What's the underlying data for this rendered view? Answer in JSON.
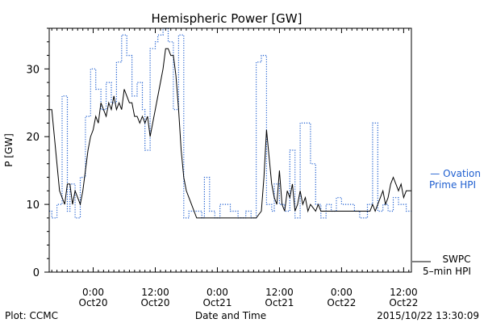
{
  "chart_data": {
    "type": "line",
    "title": "Hemispheric Power [GW]",
    "xlabel": "Date and Time",
    "ylabel": "P [GW]",
    "xlim": [
      "2015-10-19 15:30",
      "2015-10-22 13:30"
    ],
    "ylim": [
      0,
      36
    ],
    "y_ticks": [
      0,
      10,
      20,
      30
    ],
    "x_ticks": [
      {
        "time": "2015-10-20 00:00",
        "line1": "0:00",
        "line2": "Oct20"
      },
      {
        "time": "2015-10-20 12:00",
        "line1": "12:00",
        "line2": "Oct20"
      },
      {
        "time": "2015-10-21 00:00",
        "line1": "0:00",
        "line2": "Oct21"
      },
      {
        "time": "2015-10-21 12:00",
        "line1": "12:00",
        "line2": "Oct21"
      },
      {
        "time": "2015-10-22 00:00",
        "line1": "0:00",
        "line2": "Oct22"
      },
      {
        "time": "2015-10-22 12:00",
        "line1": "12:00",
        "line2": "Oct22"
      }
    ],
    "series": [
      {
        "name": "Ovation Prime HPI",
        "style": "dotted-step",
        "color": "#1f5fd0",
        "points": [
          [
            "2015-10-19 15:30",
            9
          ],
          [
            "2015-10-19 16:00",
            8
          ],
          [
            "2015-10-19 17:00",
            10
          ],
          [
            "2015-10-19 18:00",
            26
          ],
          [
            "2015-10-19 19:00",
            9
          ],
          [
            "2015-10-19 19:30",
            13
          ],
          [
            "2015-10-19 20:30",
            8
          ],
          [
            "2015-10-19 21:30",
            14
          ],
          [
            "2015-10-19 22:30",
            23
          ],
          [
            "2015-10-19 23:30",
            30
          ],
          [
            "2015-10-20 00:30",
            27
          ],
          [
            "2015-10-20 01:30",
            24
          ],
          [
            "2015-10-20 02:30",
            28
          ],
          [
            "2015-10-20 03:30",
            25
          ],
          [
            "2015-10-20 04:30",
            31
          ],
          [
            "2015-10-20 05:30",
            35
          ],
          [
            "2015-10-20 06:30",
            32
          ],
          [
            "2015-10-20 07:30",
            26
          ],
          [
            "2015-10-20 08:30",
            28
          ],
          [
            "2015-10-20 09:30",
            24
          ],
          [
            "2015-10-20 10:00",
            18
          ],
          [
            "2015-10-20 11:00",
            33
          ],
          [
            "2015-10-20 12:00",
            34
          ],
          [
            "2015-10-20 12:30",
            35
          ],
          [
            "2015-10-20 13:30",
            36
          ],
          [
            "2015-10-20 14:30",
            34
          ],
          [
            "2015-10-20 15:30",
            24
          ],
          [
            "2015-10-20 16:30",
            35
          ],
          [
            "2015-10-20 17:30",
            8
          ],
          [
            "2015-10-20 18:30",
            9
          ],
          [
            "2015-10-20 21:00",
            8
          ],
          [
            "2015-10-20 21:30",
            14
          ],
          [
            "2015-10-20 22:30",
            9
          ],
          [
            "2015-10-20 23:30",
            8
          ],
          [
            "2015-10-21 00:30",
            10
          ],
          [
            "2015-10-21 02:30",
            9
          ],
          [
            "2015-10-21 04:00",
            8
          ],
          [
            "2015-10-21 05:30",
            9
          ],
          [
            "2015-10-21 06:30",
            8
          ],
          [
            "2015-10-21 07:30",
            31
          ],
          [
            "2015-10-21 08:30",
            32
          ],
          [
            "2015-10-21 09:30",
            10
          ],
          [
            "2015-10-21 10:30",
            9
          ],
          [
            "2015-10-21 11:00",
            13
          ],
          [
            "2015-10-21 12:00",
            10
          ],
          [
            "2015-10-21 13:00",
            9
          ],
          [
            "2015-10-21 14:00",
            18
          ],
          [
            "2015-10-21 15:00",
            8
          ],
          [
            "2015-10-21 16:00",
            22
          ],
          [
            "2015-10-21 18:00",
            16
          ],
          [
            "2015-10-21 19:00",
            10
          ],
          [
            "2015-10-21 20:00",
            8
          ],
          [
            "2015-10-21 21:00",
            10
          ],
          [
            "2015-10-21 22:00",
            9
          ],
          [
            "2015-10-21 23:00",
            11
          ],
          [
            "2015-10-22 00:00",
            10
          ],
          [
            "2015-10-22 02:30",
            9
          ],
          [
            "2015-10-22 03:30",
            8
          ],
          [
            "2015-10-22 05:00",
            10
          ],
          [
            "2015-10-22 06:00",
            22
          ],
          [
            "2015-10-22 07:00",
            9
          ],
          [
            "2015-10-22 08:00",
            10
          ],
          [
            "2015-10-22 09:00",
            9
          ],
          [
            "2015-10-22 10:00",
            11
          ],
          [
            "2015-10-22 11:00",
            10
          ],
          [
            "2015-10-22 12:30",
            9
          ],
          [
            "2015-10-22 13:30",
            9
          ]
        ]
      },
      {
        "name": "SWPC 5-min HPI",
        "style": "solid",
        "color": "#000000",
        "points": [
          [
            "2015-10-19 15:30",
            24
          ],
          [
            "2015-10-19 16:00",
            24
          ],
          [
            "2015-10-19 16:30",
            20
          ],
          [
            "2015-10-19 17:00",
            16
          ],
          [
            "2015-10-19 17:30",
            12
          ],
          [
            "2015-10-19 18:00",
            11
          ],
          [
            "2015-10-19 18:30",
            10
          ],
          [
            "2015-10-19 19:00",
            13
          ],
          [
            "2015-10-19 19:30",
            13
          ],
          [
            "2015-10-19 20:00",
            10
          ],
          [
            "2015-10-19 20:30",
            12
          ],
          [
            "2015-10-19 21:00",
            11
          ],
          [
            "2015-10-19 21:30",
            10
          ],
          [
            "2015-10-19 22:00",
            12
          ],
          [
            "2015-10-19 22:30",
            15
          ],
          [
            "2015-10-19 23:00",
            18
          ],
          [
            "2015-10-19 23:30",
            20
          ],
          [
            "2015-10-20 00:00",
            21
          ],
          [
            "2015-10-20 00:30",
            23
          ],
          [
            "2015-10-20 01:00",
            22
          ],
          [
            "2015-10-20 01:30",
            25
          ],
          [
            "2015-10-20 02:00",
            24
          ],
          [
            "2015-10-20 02:30",
            23
          ],
          [
            "2015-10-20 03:00",
            25
          ],
          [
            "2015-10-20 03:30",
            24
          ],
          [
            "2015-10-20 04:00",
            26
          ],
          [
            "2015-10-20 04:30",
            24
          ],
          [
            "2015-10-20 05:00",
            25
          ],
          [
            "2015-10-20 05:30",
            24
          ],
          [
            "2015-10-20 06:00",
            27
          ],
          [
            "2015-10-20 06:30",
            26
          ],
          [
            "2015-10-20 07:00",
            25
          ],
          [
            "2015-10-20 07:30",
            25
          ],
          [
            "2015-10-20 08:00",
            23
          ],
          [
            "2015-10-20 08:30",
            23
          ],
          [
            "2015-10-20 09:00",
            22
          ],
          [
            "2015-10-20 09:30",
            23
          ],
          [
            "2015-10-20 10:00",
            22
          ],
          [
            "2015-10-20 10:30",
            23
          ],
          [
            "2015-10-20 11:00",
            20
          ],
          [
            "2015-10-20 11:30",
            22
          ],
          [
            "2015-10-20 12:00",
            24
          ],
          [
            "2015-10-20 12:30",
            26
          ],
          [
            "2015-10-20 13:00",
            28
          ],
          [
            "2015-10-20 13:30",
            30
          ],
          [
            "2015-10-20 14:00",
            33
          ],
          [
            "2015-10-20 14:30",
            33
          ],
          [
            "2015-10-20 15:00",
            32
          ],
          [
            "2015-10-20 15:30",
            32
          ],
          [
            "2015-10-20 16:00",
            29
          ],
          [
            "2015-10-20 16:30",
            24
          ],
          [
            "2015-10-20 17:00",
            18
          ],
          [
            "2015-10-20 17:30",
            14
          ],
          [
            "2015-10-20 18:00",
            12
          ],
          [
            "2015-10-20 18:30",
            11
          ],
          [
            "2015-10-20 19:00",
            10
          ],
          [
            "2015-10-20 19:30",
            9
          ],
          [
            "2015-10-20 20:00",
            8
          ],
          [
            "2015-10-20 20:30",
            8
          ],
          [
            "2015-10-21 06:30",
            8
          ],
          [
            "2015-10-21 07:30",
            8
          ],
          [
            "2015-10-21 08:30",
            9
          ],
          [
            "2015-10-21 09:00",
            14
          ],
          [
            "2015-10-21 09:30",
            21
          ],
          [
            "2015-10-21 10:00",
            17
          ],
          [
            "2015-10-21 10:30",
            13
          ],
          [
            "2015-10-21 11:00",
            11
          ],
          [
            "2015-10-21 11:30",
            10
          ],
          [
            "2015-10-21 12:00",
            15
          ],
          [
            "2015-10-21 12:30",
            10
          ],
          [
            "2015-10-21 13:00",
            9
          ],
          [
            "2015-10-21 13:30",
            12
          ],
          [
            "2015-10-21 14:00",
            11
          ],
          [
            "2015-10-21 14:30",
            13
          ],
          [
            "2015-10-21 15:00",
            9
          ],
          [
            "2015-10-21 15:30",
            10
          ],
          [
            "2015-10-21 16:00",
            12
          ],
          [
            "2015-10-21 16:30",
            10
          ],
          [
            "2015-10-21 17:00",
            11
          ],
          [
            "2015-10-21 17:30",
            9
          ],
          [
            "2015-10-21 18:00",
            10
          ],
          [
            "2015-10-21 19:00",
            9
          ],
          [
            "2015-10-21 19:30",
            10
          ],
          [
            "2015-10-21 20:00",
            9
          ],
          [
            "2015-10-21 20:30",
            9
          ],
          [
            "2015-10-22 05:00",
            9
          ],
          [
            "2015-10-22 05:30",
            9
          ],
          [
            "2015-10-22 06:00",
            10
          ],
          [
            "2015-10-22 06:30",
            9
          ],
          [
            "2015-10-22 07:00",
            10
          ],
          [
            "2015-10-22 07:30",
            11
          ],
          [
            "2015-10-22 08:00",
            12
          ],
          [
            "2015-10-22 08:30",
            10
          ],
          [
            "2015-10-22 09:00",
            11
          ],
          [
            "2015-10-22 09:30",
            13
          ],
          [
            "2015-10-22 10:00",
            14
          ],
          [
            "2015-10-22 10:30",
            13
          ],
          [
            "2015-10-22 11:00",
            12
          ],
          [
            "2015-10-22 11:30",
            13
          ],
          [
            "2015-10-22 12:00",
            11
          ],
          [
            "2015-10-22 12:30",
            12
          ],
          [
            "2015-10-22 13:30",
            12
          ]
        ]
      }
    ]
  },
  "legend": {
    "ovation_line1": "— Ovation",
    "ovation_line2": "Prime HPI",
    "swpc_line1": "SWPC",
    "swpc_line2": "5–min HPI"
  },
  "footer": {
    "plot_credit": "Plot: CCMC",
    "timestamp": "2015/10/22 13:30:09"
  }
}
